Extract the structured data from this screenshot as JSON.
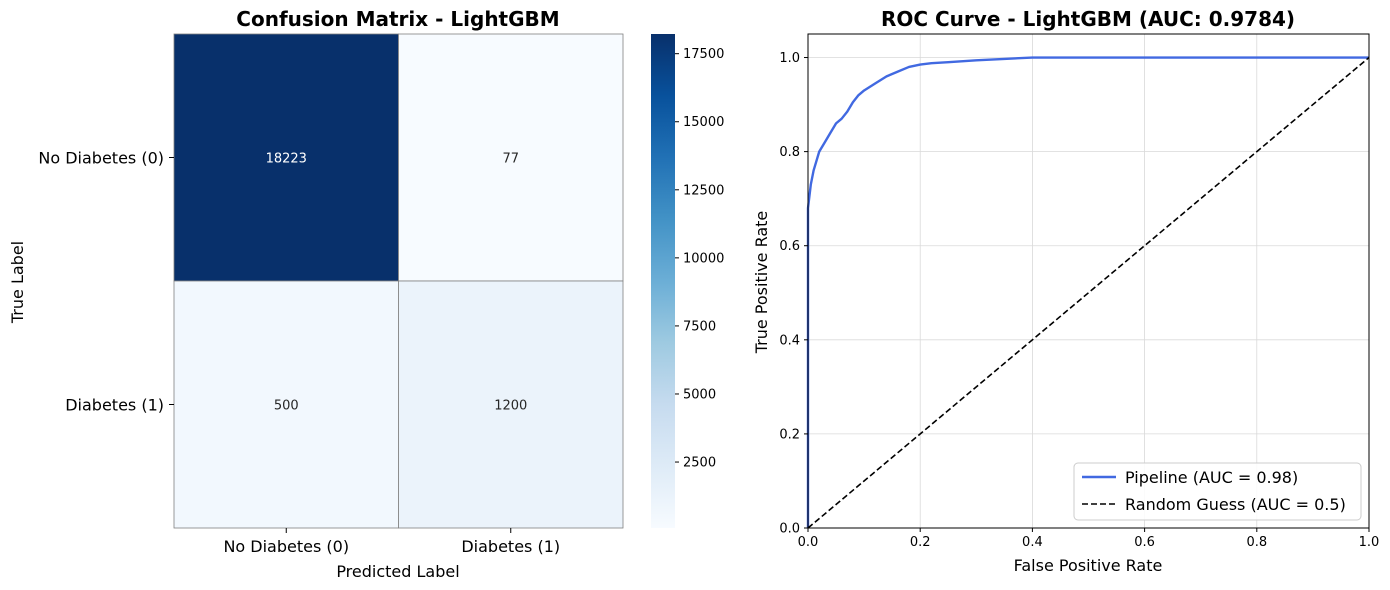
{
  "chart_data": [
    {
      "type": "heatmap",
      "title": "Confusion Matrix - LightGBM",
      "xlabel": "Predicted Label",
      "ylabel": "True Label",
      "x_categories": [
        "No Diabetes (0)",
        "Diabetes (1)"
      ],
      "y_categories": [
        "No Diabetes (0)",
        "Diabetes (1)"
      ],
      "matrix": [
        [
          18223,
          77
        ],
        [
          500,
          1200
        ]
      ],
      "colormap": "Blues",
      "colorbar": {
        "min": 77,
        "max": 18223,
        "ticks": [
          2500,
          5000,
          7500,
          10000,
          12500,
          15000,
          17500
        ]
      }
    },
    {
      "type": "line",
      "title": "ROC Curve - LightGBM (AUC: 0.9784)",
      "xlabel": "False Positive Rate",
      "ylabel": "True Positive Rate",
      "xlim": [
        0,
        1
      ],
      "ylim": [
        0,
        1.05
      ],
      "xticks": [
        0.0,
        0.2,
        0.4,
        0.6,
        0.8,
        1.0
      ],
      "yticks": [
        0.0,
        0.2,
        0.4,
        0.6,
        0.8,
        1.0
      ],
      "grid": true,
      "legend_position": "lower-right",
      "series": [
        {
          "name": "Pipeline (AUC = 0.98)",
          "color": "#4169e1",
          "style": "solid",
          "x": [
            0.0,
            0.0,
            0.002,
            0.005,
            0.01,
            0.015,
            0.02,
            0.03,
            0.04,
            0.05,
            0.06,
            0.07,
            0.08,
            0.09,
            0.1,
            0.12,
            0.14,
            0.16,
            0.18,
            0.2,
            0.22,
            0.25,
            0.3,
            0.35,
            0.4,
            0.5,
            0.6,
            0.7,
            0.8,
            0.9,
            1.0
          ],
          "y": [
            0.0,
            0.68,
            0.7,
            0.73,
            0.76,
            0.78,
            0.8,
            0.82,
            0.84,
            0.86,
            0.87,
            0.885,
            0.905,
            0.92,
            0.93,
            0.945,
            0.96,
            0.97,
            0.98,
            0.985,
            0.988,
            0.99,
            0.994,
            0.997,
            1.0,
            1.0,
            1.0,
            1.0,
            1.0,
            1.0,
            1.0
          ]
        },
        {
          "name": "Random Guess (AUC = 0.5)",
          "color": "#000000",
          "style": "dashed",
          "x": [
            0,
            1
          ],
          "y": [
            0,
            1
          ]
        }
      ]
    }
  ]
}
